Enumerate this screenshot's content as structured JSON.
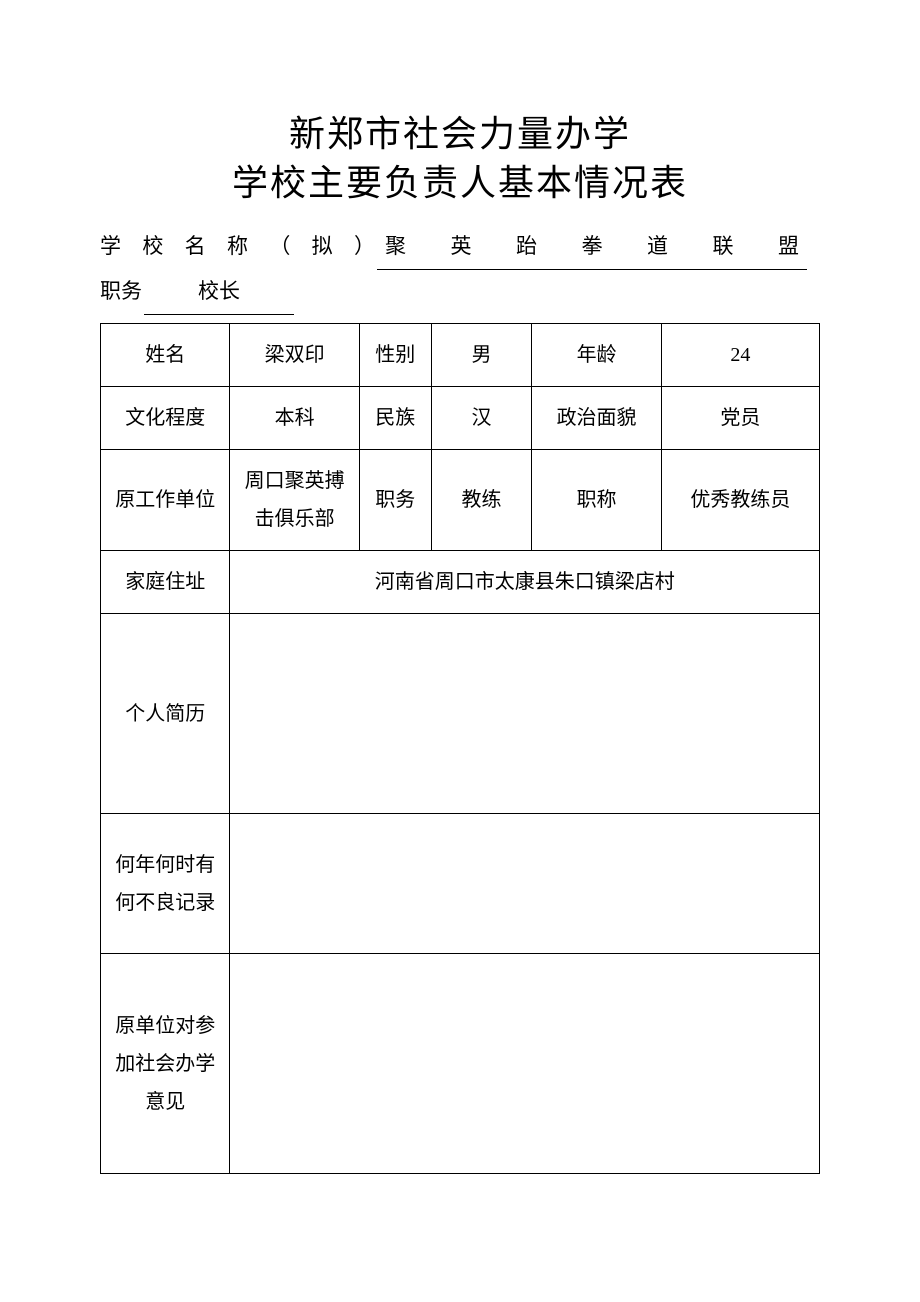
{
  "title": {
    "line1": "新郑市社会力量办学",
    "line2": "学校主要负责人基本情况表"
  },
  "header": {
    "school_label": "学校名称（拟）",
    "school_value": "聚英跆拳道联盟",
    "position_label": "职务",
    "position_value": "校长"
  },
  "table": {
    "rows": [
      {
        "c1": "姓名",
        "c2": "梁双印",
        "c3": "性别",
        "c4": "男",
        "c5": "年龄",
        "c6": "24"
      },
      {
        "c1": "文化程度",
        "c2": "本科",
        "c3": "民族",
        "c4": "汉",
        "c5": "政治面貌",
        "c6": "党员"
      },
      {
        "c1": "原工作单位",
        "c2": "周口聚英搏击俱乐部",
        "c3": "职务",
        "c4": "教练",
        "c5": "职称",
        "c6": "优秀教练员"
      }
    ],
    "address_label": "家庭住址",
    "address_value": "河南省周口市太康县朱口镇梁店村",
    "resume_label": "个人简历",
    "resume_value": "",
    "record_label": "何年何时有何不良记录",
    "record_value": "",
    "opinion_label": "原单位对参加社会办学意见",
    "opinion_value": ""
  },
  "style": {
    "background_color": "#ffffff",
    "text_color": "#000000",
    "border_color": "#000000",
    "title_fontsize": 36,
    "body_fontsize": 20,
    "header_fontsize": 21,
    "font_family": "SimSun"
  }
}
